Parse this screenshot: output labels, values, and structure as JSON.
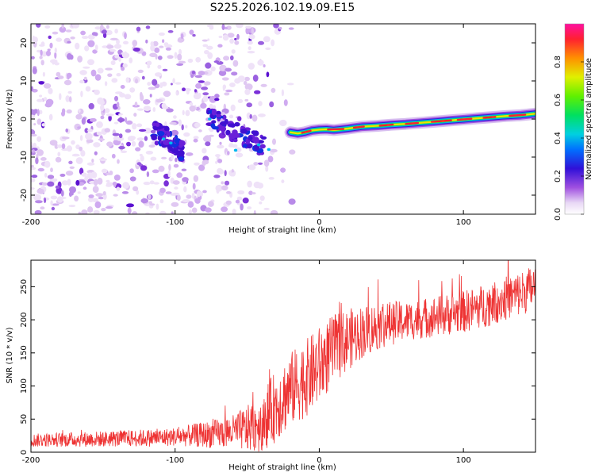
{
  "title": "S225.2026.102.19.09.E15",
  "chart_data": [
    {
      "type": "heatmap",
      "name": "spectrogram",
      "xlabel": "Height of straight line (km)",
      "ylabel": "Frequency (Hz)",
      "xlim": [
        -200,
        150
      ],
      "ylim": [
        -25,
        25
      ],
      "xticks": [
        -200,
        -100,
        0,
        100
      ],
      "xtick_labels": [
        "-200",
        "-100",
        "0",
        "100"
      ],
      "yticks": [
        -20,
        -10,
        0,
        10,
        20
      ],
      "ytick_labels": [
        "-20",
        "-10",
        "0",
        "10",
        "20"
      ],
      "ridge_line": {
        "x": [
          -20,
          -15,
          -10,
          -5,
          0,
          5,
          10,
          20,
          30,
          40,
          50,
          60,
          70,
          80,
          90,
          100,
          110,
          120,
          130,
          140,
          150
        ],
        "y": [
          -3.5,
          -3.8,
          -3.5,
          -3.0,
          -2.8,
          -2.7,
          -2.9,
          -2.5,
          -2.0,
          -1.8,
          -1.5,
          -1.3,
          -1.0,
          -0.7,
          -0.4,
          -0.1,
          0.2,
          0.5,
          0.8,
          1.0,
          1.4
        ]
      },
      "descending_ridges": [
        {
          "x": [
            -115,
            -105,
            -95
          ],
          "y": [
            -3.5,
            -5.0,
            -9.0
          ]
        },
        {
          "x": [
            -80,
            -65,
            -50,
            -38
          ],
          "y": [
            2.0,
            -2.0,
            -5.0,
            -7.5
          ]
        }
      ],
      "noise_region": [
        -200,
        -20
      ],
      "colorbar": {
        "label": "Normalized spectral amplitude",
        "range": [
          0,
          1
        ],
        "ticks": [
          0.0,
          0.2,
          0.4,
          0.6,
          0.8
        ],
        "tick_labels": [
          "0.0",
          "0.2",
          "0.4",
          "0.6",
          "0.8"
        ]
      }
    },
    {
      "type": "line",
      "name": "snr",
      "xlabel": "Height of straight line (km)",
      "ylabel": "SNR (10 * v/v)",
      "xlim": [
        -200,
        150
      ],
      "ylim": [
        0,
        290
      ],
      "xticks": [
        -200,
        -100,
        0,
        100
      ],
      "xtick_labels": [
        "-200",
        "-100",
        "0",
        "100"
      ],
      "yticks": [
        0,
        50,
        100,
        150,
        200,
        250
      ],
      "ytick_labels": [
        "0",
        "50",
        "100",
        "150",
        "200",
        "250"
      ],
      "color": "#ee3333",
      "trend": {
        "x": [
          -200,
          -150,
          -110,
          -90,
          -70,
          -50,
          -40,
          -30,
          -20,
          -10,
          0,
          10,
          20,
          30,
          40,
          50,
          60,
          80,
          100,
          120,
          140,
          150
        ],
        "y": [
          18,
          20,
          22,
          25,
          28,
          35,
          45,
          70,
          95,
          110,
          130,
          155,
          170,
          182,
          190,
          195,
          198,
          205,
          212,
          225,
          240,
          250
        ]
      },
      "noise_amplitude": {
        "x": [
          -200,
          -100,
          -60,
          -30,
          0,
          30,
          60,
          100,
          150
        ],
        "y": [
          10,
          14,
          25,
          55,
          60,
          40,
          30,
          32,
          35
        ]
      }
    }
  ]
}
